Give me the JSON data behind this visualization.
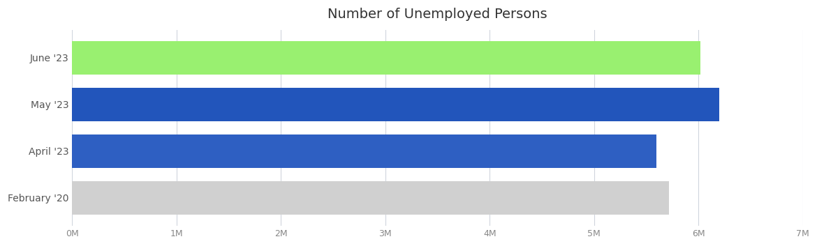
{
  "title": "Number of Unemployed Persons",
  "categories": [
    "February '20",
    "April '23",
    "May '23",
    "June '23"
  ],
  "values": [
    5720000,
    5600000,
    6200000,
    6020000
  ],
  "bar_colors": [
    "#d0d0d0",
    "#2e5fc2",
    "#2255bb",
    "#99f070"
  ],
  "xlim": [
    0,
    7000000
  ],
  "xtick_values": [
    0,
    1000000,
    2000000,
    3000000,
    4000000,
    5000000,
    6000000,
    7000000
  ],
  "xtick_labels": [
    "0M",
    "1M",
    "2M",
    "3M",
    "4M",
    "5M",
    "6M",
    "7M"
  ],
  "background_color": "#ffffff",
  "grid_color": "#d0d5dd",
  "title_color": "#333333",
  "title_fontsize": 14,
  "label_fontsize": 10,
  "tick_fontsize": 9,
  "bar_height": 0.72,
  "y_label_color": "#555555",
  "tick_label_color": "#888888"
}
